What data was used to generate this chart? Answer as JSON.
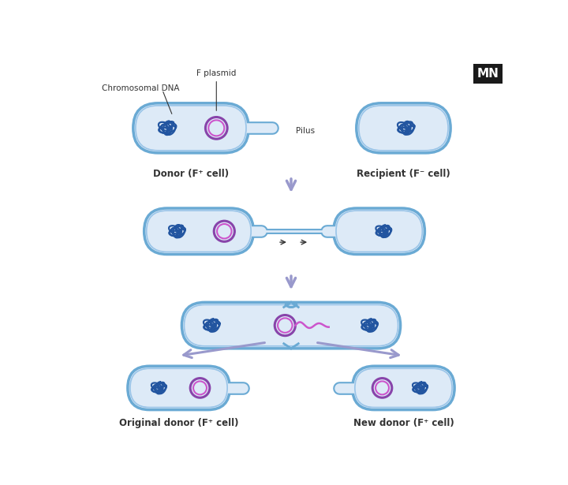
{
  "bg_color": "#ffffff",
  "cell_fill": "#ddeaf7",
  "cell_edge_outer": "#6aaad4",
  "cell_edge_inner": "#99c4e8",
  "plasmid_color_outer": "#8844aa",
  "plasmid_color_inner": "#cc55cc",
  "dna_color": "#2255a0",
  "arrow_color": "#9999cc",
  "label_color": "#333333",
  "mn_bg": "#1a1a1a",
  "mn_text": "#ffffff",
  "labels": {
    "chromosomal_dna": "Chromosomal DNA",
    "f_plasmid": "F plasmid",
    "pilus": "Pilus",
    "donor": "Donor (F⁺ cell)",
    "recipient": "Recipient (F⁻ cell)",
    "original_donor": "Original donor (F⁺ cell)",
    "new_donor": "New donor (F⁺ cell)"
  }
}
